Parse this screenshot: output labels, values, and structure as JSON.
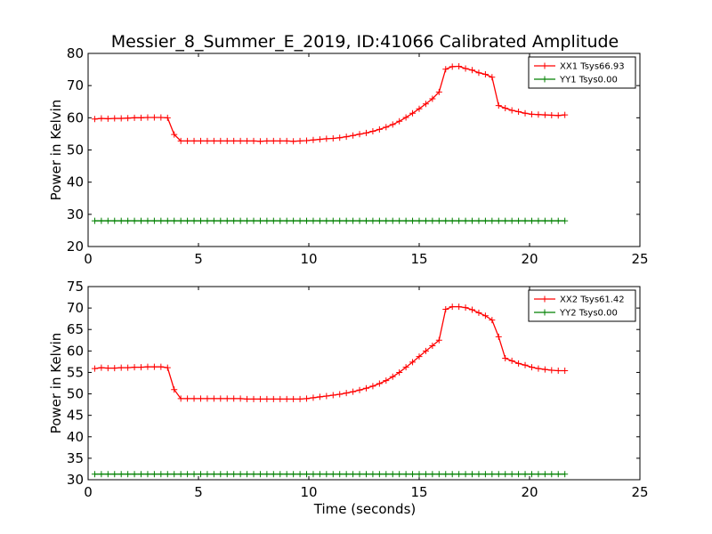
{
  "title": "Messier_8_Summer_E_2019, ID:41066 Calibrated Amplitude",
  "xlabel": "Time (seconds)",
  "chart_data": [
    {
      "type": "line",
      "title": "Messier_8_Summer_E_2019, ID:41066 Calibrated Amplitude",
      "xlabel": "",
      "ylabel": "Power in Kelvin",
      "xlim": [
        0,
        25
      ],
      "ylim": [
        20,
        80
      ],
      "xticks": [
        0,
        5,
        10,
        15,
        20,
        25
      ],
      "yticks": [
        20,
        30,
        40,
        50,
        60,
        70,
        80
      ],
      "grid": false,
      "legend_position": "top-right",
      "x": [
        0.3,
        0.6,
        0.9,
        1.2,
        1.5,
        1.8,
        2.1,
        2.4,
        2.7,
        3.0,
        3.3,
        3.6,
        3.9,
        4.2,
        4.5,
        4.8,
        5.1,
        5.4,
        5.7,
        6.0,
        6.3,
        6.6,
        6.9,
        7.2,
        7.5,
        7.8,
        8.1,
        8.4,
        8.7,
        9.0,
        9.3,
        9.6,
        9.9,
        10.2,
        10.5,
        10.8,
        11.1,
        11.4,
        11.7,
        12.0,
        12.3,
        12.6,
        12.9,
        13.2,
        13.5,
        13.8,
        14.1,
        14.4,
        14.7,
        15.0,
        15.3,
        15.6,
        15.9,
        16.2,
        16.5,
        16.8,
        17.1,
        17.4,
        17.7,
        18.0,
        18.3,
        18.6,
        18.9,
        19.2,
        19.5,
        19.8,
        20.1,
        20.4,
        20.7,
        21.0,
        21.3,
        21.6
      ],
      "series": [
        {
          "name": "XX1 Tsys66.93",
          "color": "#ff0000",
          "values": [
            59.6,
            59.8,
            59.7,
            59.8,
            59.8,
            59.9,
            60.0,
            60.0,
            60.1,
            60.1,
            60.1,
            60.0,
            54.8,
            52.8,
            52.8,
            52.8,
            52.8,
            52.8,
            52.8,
            52.8,
            52.8,
            52.8,
            52.8,
            52.8,
            52.8,
            52.7,
            52.8,
            52.8,
            52.8,
            52.8,
            52.7,
            52.8,
            52.9,
            53.1,
            53.3,
            53.5,
            53.6,
            53.8,
            54.1,
            54.5,
            54.9,
            55.3,
            55.8,
            56.4,
            57.1,
            57.9,
            58.9,
            60.1,
            61.4,
            62.8,
            64.3,
            65.9,
            68.0,
            75.1,
            75.9,
            76.0,
            75.3,
            74.8,
            74.0,
            73.5,
            72.6,
            63.8,
            63.0,
            62.3,
            61.9,
            61.4,
            61.1,
            61.0,
            60.9,
            60.8,
            60.7,
            60.9
          ]
        },
        {
          "name": "YY1 Tsys0.00",
          "color": "#008000",
          "values": [
            28.0,
            28.0,
            28.0,
            28.0,
            28.0,
            28.0,
            28.0,
            28.0,
            28.0,
            28.0,
            28.0,
            28.0,
            28.0,
            28.0,
            28.0,
            28.0,
            28.0,
            28.0,
            28.0,
            28.0,
            28.0,
            28.0,
            28.0,
            28.0,
            28.0,
            28.0,
            28.0,
            28.0,
            28.0,
            28.0,
            28.0,
            28.0,
            28.0,
            28.0,
            28.0,
            28.0,
            28.0,
            28.0,
            28.0,
            28.0,
            28.0,
            28.0,
            28.0,
            28.0,
            28.0,
            28.0,
            28.0,
            28.0,
            28.0,
            28.0,
            28.0,
            28.0,
            28.0,
            28.0,
            28.0,
            28.0,
            28.0,
            28.0,
            28.0,
            28.0,
            28.0,
            28.0,
            28.0,
            28.0,
            28.0,
            28.0,
            28.0,
            28.0,
            28.0,
            28.0,
            28.0,
            28.0
          ]
        }
      ]
    },
    {
      "type": "line",
      "title": "",
      "xlabel": "Time (seconds)",
      "ylabel": "Power in Kelvin",
      "xlim": [
        0,
        25
      ],
      "ylim": [
        30,
        75
      ],
      "xticks": [
        0,
        5,
        10,
        15,
        20,
        25
      ],
      "yticks": [
        30,
        35,
        40,
        45,
        50,
        55,
        60,
        65,
        70,
        75
      ],
      "grid": false,
      "legend_position": "top-right",
      "x": [
        0.3,
        0.6,
        0.9,
        1.2,
        1.5,
        1.8,
        2.1,
        2.4,
        2.7,
        3.0,
        3.3,
        3.6,
        3.9,
        4.2,
        4.5,
        4.8,
        5.1,
        5.4,
        5.7,
        6.0,
        6.3,
        6.6,
        6.9,
        7.2,
        7.5,
        7.8,
        8.1,
        8.4,
        8.7,
        9.0,
        9.3,
        9.6,
        9.9,
        10.2,
        10.5,
        10.8,
        11.1,
        11.4,
        11.7,
        12.0,
        12.3,
        12.6,
        12.9,
        13.2,
        13.5,
        13.8,
        14.1,
        14.4,
        14.7,
        15.0,
        15.3,
        15.6,
        15.9,
        16.2,
        16.5,
        16.8,
        17.1,
        17.4,
        17.7,
        18.0,
        18.3,
        18.6,
        18.9,
        19.2,
        19.5,
        19.8,
        20.1,
        20.4,
        20.7,
        21.0,
        21.3,
        21.6
      ],
      "series": [
        {
          "name": "XX2 Tsys61.42",
          "color": "#ff0000",
          "values": [
            55.9,
            56.1,
            56.0,
            56.0,
            56.1,
            56.1,
            56.2,
            56.2,
            56.3,
            56.3,
            56.3,
            56.1,
            51.0,
            48.9,
            48.9,
            48.9,
            48.9,
            48.9,
            48.9,
            48.9,
            48.9,
            48.9,
            48.9,
            48.8,
            48.8,
            48.8,
            48.8,
            48.8,
            48.8,
            48.8,
            48.8,
            48.8,
            48.9,
            49.1,
            49.3,
            49.5,
            49.7,
            49.9,
            50.2,
            50.5,
            50.9,
            51.3,
            51.8,
            52.4,
            53.1,
            54.0,
            55.0,
            56.2,
            57.4,
            58.7,
            60.0,
            61.2,
            62.5,
            69.7,
            70.3,
            70.3,
            70.1,
            69.6,
            68.9,
            68.2,
            67.2,
            63.3,
            58.3,
            57.7,
            57.1,
            56.7,
            56.2,
            55.9,
            55.7,
            55.5,
            55.4,
            55.4
          ]
        },
        {
          "name": "YY2 Tsys0.00",
          "color": "#008000",
          "values": [
            31.3,
            31.3,
            31.3,
            31.3,
            31.3,
            31.3,
            31.3,
            31.3,
            31.3,
            31.3,
            31.3,
            31.3,
            31.3,
            31.3,
            31.3,
            31.3,
            31.3,
            31.3,
            31.3,
            31.3,
            31.3,
            31.3,
            31.3,
            31.3,
            31.3,
            31.3,
            31.3,
            31.3,
            31.3,
            31.3,
            31.3,
            31.3,
            31.3,
            31.3,
            31.3,
            31.3,
            31.3,
            31.3,
            31.3,
            31.3,
            31.3,
            31.3,
            31.3,
            31.3,
            31.3,
            31.3,
            31.3,
            31.3,
            31.3,
            31.3,
            31.3,
            31.3,
            31.3,
            31.3,
            31.3,
            31.3,
            31.3,
            31.3,
            31.3,
            31.3,
            31.3,
            31.3,
            31.3,
            31.3,
            31.3,
            31.3,
            31.3,
            31.3,
            31.3,
            31.3,
            31.3,
            31.3
          ]
        }
      ]
    }
  ]
}
